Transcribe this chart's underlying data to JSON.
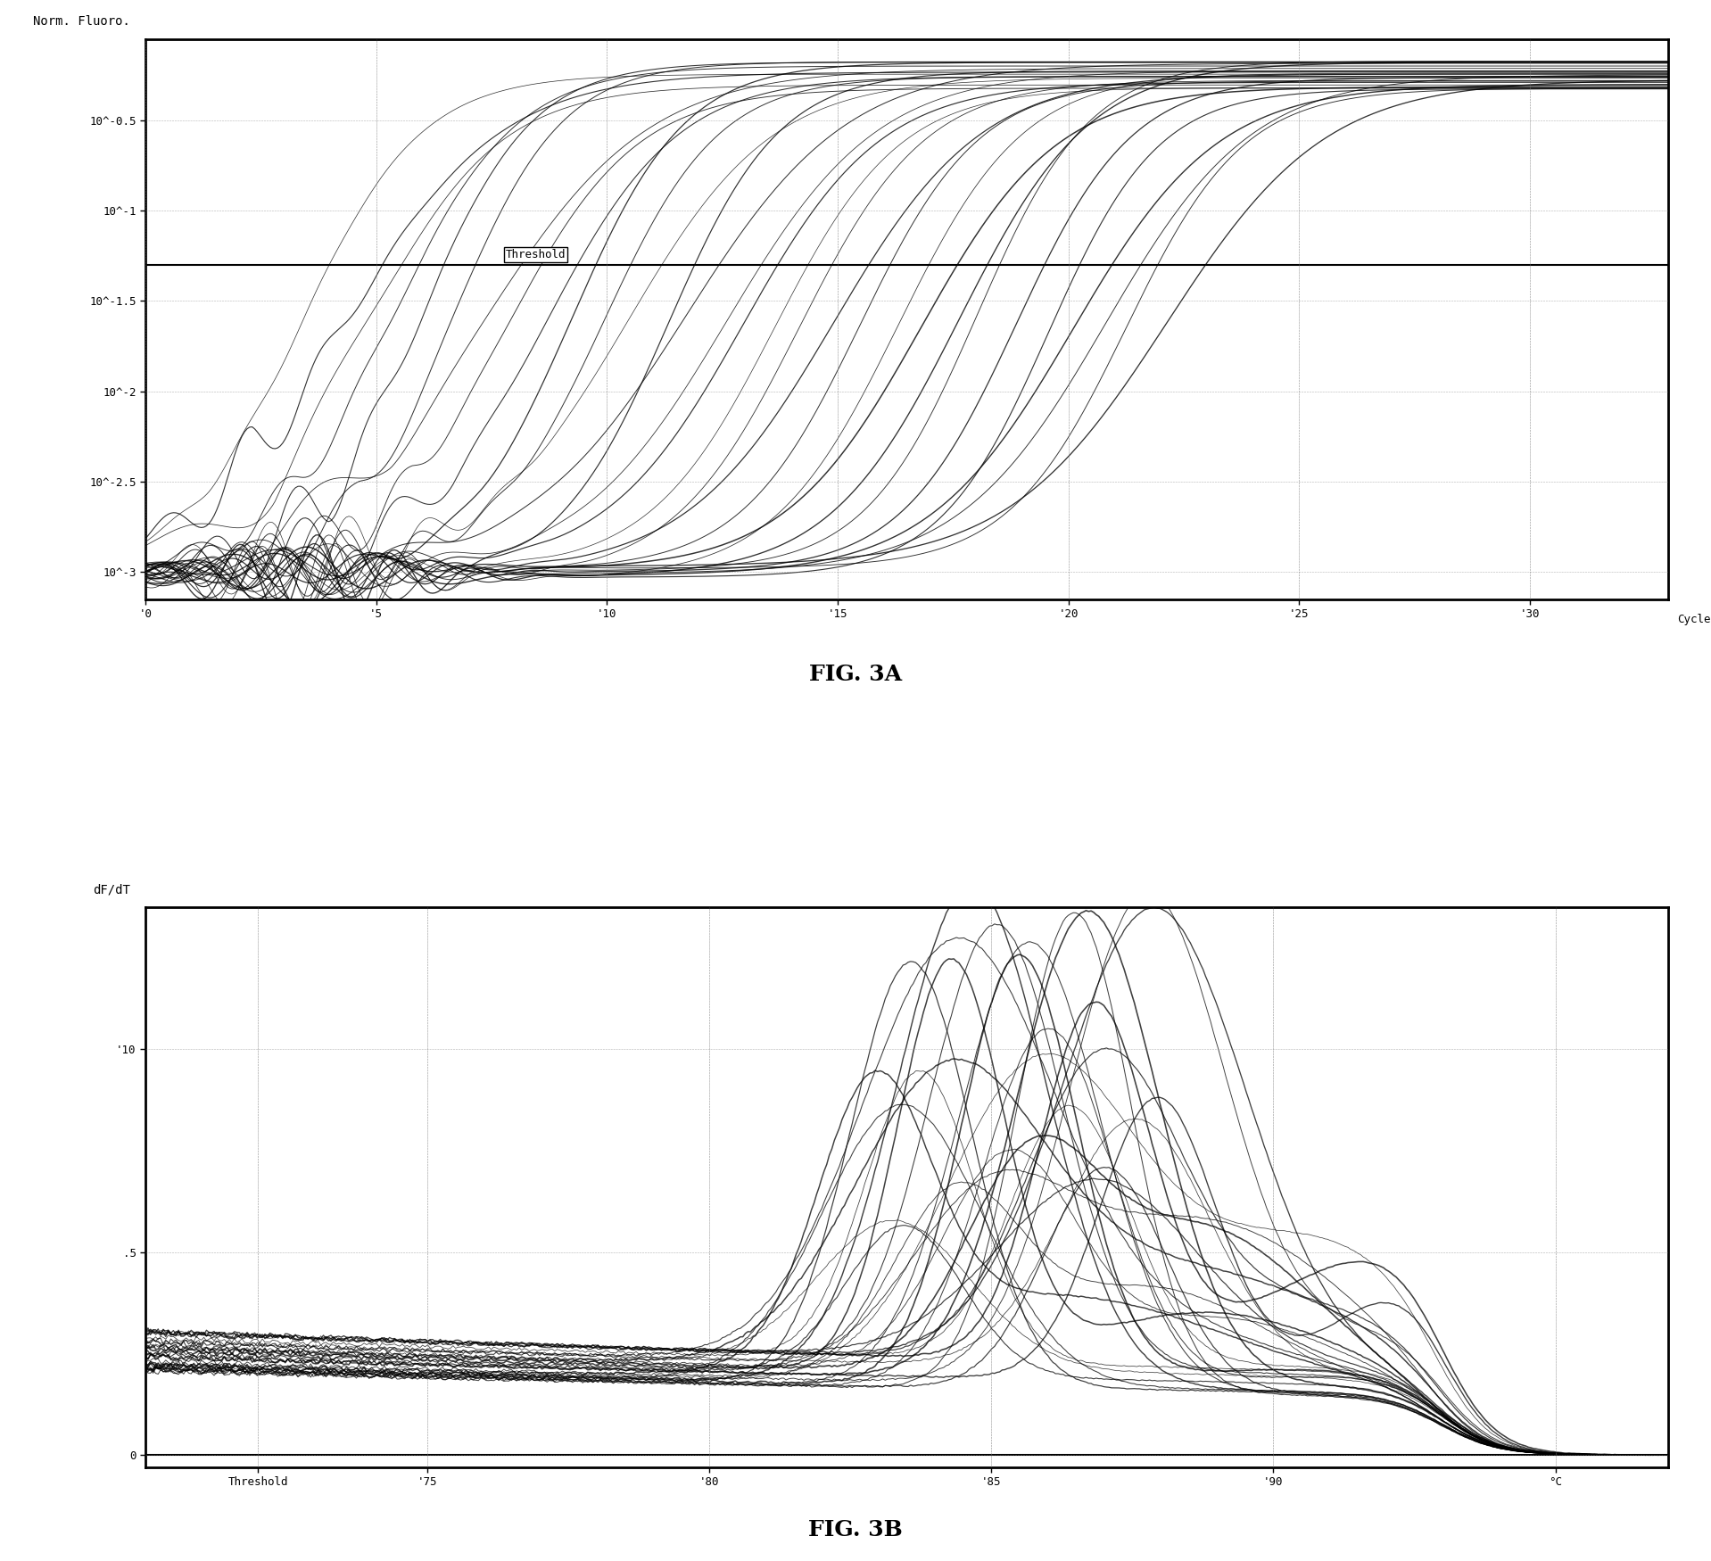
{
  "fig3a": {
    "ylabel": "Norm. Fluoro.",
    "xlabel_right": "Cycle",
    "yticks": [
      -3.0,
      -2.5,
      -2.0,
      -1.5,
      -1.0,
      -0.5
    ],
    "ytick_labels": [
      "10^-3",
      "10^-2.5",
      "10^-2",
      "10^-1.5",
      "10^-1",
      "10^-0.5"
    ],
    "xticks": [
      0,
      5,
      10,
      15,
      20,
      25,
      30
    ],
    "xtick_labels": [
      "'0",
      "'5",
      "'10",
      "'15",
      "'20",
      "'25",
      "'30"
    ],
    "x_range": [
      0,
      33
    ],
    "y_range": [
      -3.15,
      -0.05
    ],
    "threshold_y": -1.3,
    "threshold_label": "Threshold",
    "n_curves": 30
  },
  "fig3b": {
    "ylabel": "dF/dT",
    "xlabel_right": "°C",
    "yticks": [
      0.0,
      5.0,
      10.0
    ],
    "ytick_labels": [
      "0",
      ".5",
      "'10"
    ],
    "xtick_positions": [
      72.0,
      75,
      80,
      85,
      90,
      95
    ],
    "xtick_labels": [
      "Threshold",
      "'75",
      "'80",
      "'85",
      "'90",
      "°C"
    ],
    "x_range": [
      70,
      97
    ],
    "y_range": [
      -0.3,
      13.5
    ],
    "n_curves": 30
  },
  "fig3a_label": "FIG. 3A",
  "fig3b_label": "FIG. 3B",
  "label_fontsize": 18,
  "background_color": "#ffffff"
}
